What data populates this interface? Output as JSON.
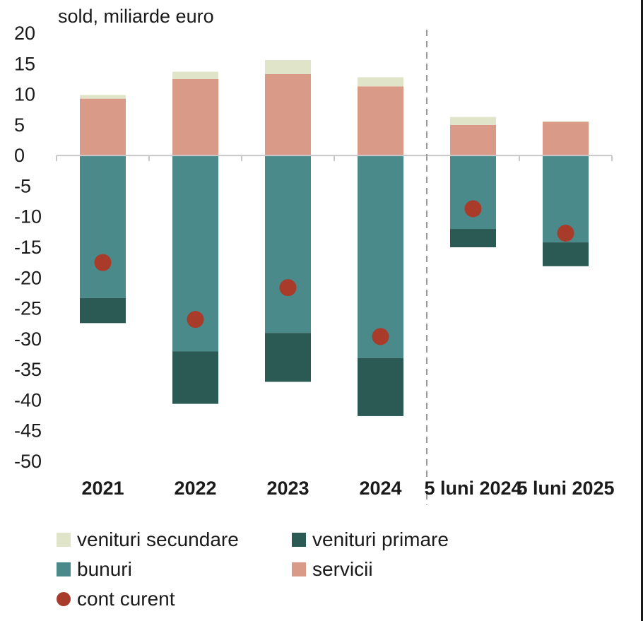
{
  "chart_data": {
    "type": "bar",
    "stacked": true,
    "ylabel": "sold, miliarde euro",
    "ylim": [
      -50,
      20
    ],
    "yticks": [
      20,
      15,
      10,
      5,
      0,
      -5,
      -10,
      -15,
      -20,
      -25,
      -30,
      -35,
      -40,
      -45,
      -50
    ],
    "categories": [
      "2021",
      "2022",
      "2023",
      "2024",
      "5 luni 2024",
      "5 luni 2025"
    ],
    "series": [
      {
        "name": "venituri secundare",
        "type": "bar",
        "color": "#e0e4c8",
        "values": [
          0.6,
          1.2,
          2.3,
          1.5,
          1.3,
          0.1
        ]
      },
      {
        "name": "venituri primare",
        "type": "bar",
        "color": "#2b5a55",
        "values": [
          -4.1,
          -8.6,
          -8.0,
          -9.5,
          -3.0,
          -3.9
        ]
      },
      {
        "name": "bunuri",
        "type": "bar",
        "color": "#4a8a8a",
        "values": [
          -23.3,
          -32.0,
          -29.0,
          -33.1,
          -12.0,
          -14.2
        ]
      },
      {
        "name": "servicii",
        "type": "bar",
        "color": "#d99a88",
        "values": [
          9.3,
          12.5,
          13.3,
          11.3,
          5.0,
          5.5
        ]
      },
      {
        "name": "cont curent",
        "type": "scatter",
        "color": "#a83b2a",
        "values": [
          -17.5,
          -26.8,
          -21.6,
          -29.6,
          -8.7,
          -12.7
        ]
      }
    ],
    "separator_after_category": 3,
    "legend": "bottom"
  }
}
